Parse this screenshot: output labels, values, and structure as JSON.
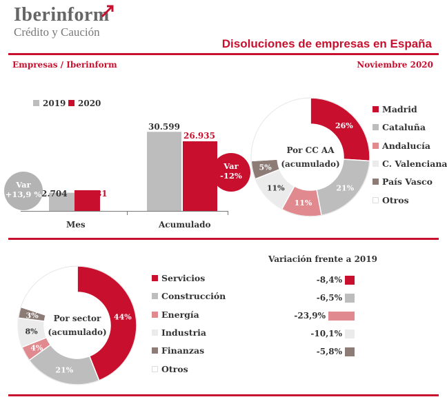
{
  "brand": {
    "name": "Iberinform",
    "tagline": "Crédito y Caución"
  },
  "title": "Disoluciones de empresas en España",
  "subtitle_left": "Empresas / Iberinform",
  "subtitle_right": "Noviembre 2020",
  "colors": {
    "accent": "#c8102e",
    "grey": "#bdbdbd",
    "pink": "#e0898f",
    "light": "#ebebeb",
    "brown": "#8d7b75",
    "white": "#ffffff"
  },
  "chart_data": [
    {
      "type": "bar",
      "categories": [
        "Mes",
        "Acumulado"
      ],
      "series": [
        {
          "name": "2019",
          "values": [
            2704,
            30599
          ],
          "labels": [
            "2.704",
            "30.599"
          ]
        },
        {
          "name": "2020",
          "values": [
            3081,
            26935
          ],
          "labels": [
            "3.081",
            "26.935"
          ]
        }
      ],
      "annotations": [
        {
          "line1": "Var",
          "line2": "+13,9 %"
        },
        {
          "line1": "Var",
          "line2": "-12%"
        }
      ]
    },
    {
      "type": "pie",
      "center_line1": "Por CC AA",
      "center_line2": "(acumulado)",
      "labels": [
        "Madrid",
        "Cataluña",
        "Andalucía",
        "C. Valenciana",
        "País Vasco",
        "Otros"
      ],
      "values": [
        26,
        21,
        11,
        11,
        5,
        26
      ],
      "value_labels": [
        "26%",
        "21%",
        "11%",
        "11%",
        "5%",
        ""
      ]
    },
    {
      "type": "pie",
      "center_line1": "Por sector",
      "center_line2": "(acumulado)",
      "labels": [
        "Servicios",
        "Construcción",
        "Energía",
        "Industria",
        "Finanzas",
        "Otros"
      ],
      "values": [
        44,
        21,
        4,
        8,
        3,
        20
      ],
      "value_labels": [
        "44%",
        "21%",
        "4%",
        "8%",
        "3%",
        ""
      ]
    },
    {
      "type": "bar",
      "title": "Variación frente a 2019",
      "categories": [
        "Servicios",
        "Construcción",
        "Energía",
        "Industria",
        "Finanzas"
      ],
      "values": [
        -8.4,
        -6.5,
        -23.9,
        -10.1,
        -5.8
      ],
      "labels": [
        "-8,4%",
        "-6,5%",
        "-23,9%",
        "-10,1%",
        "-5,8%"
      ]
    }
  ]
}
